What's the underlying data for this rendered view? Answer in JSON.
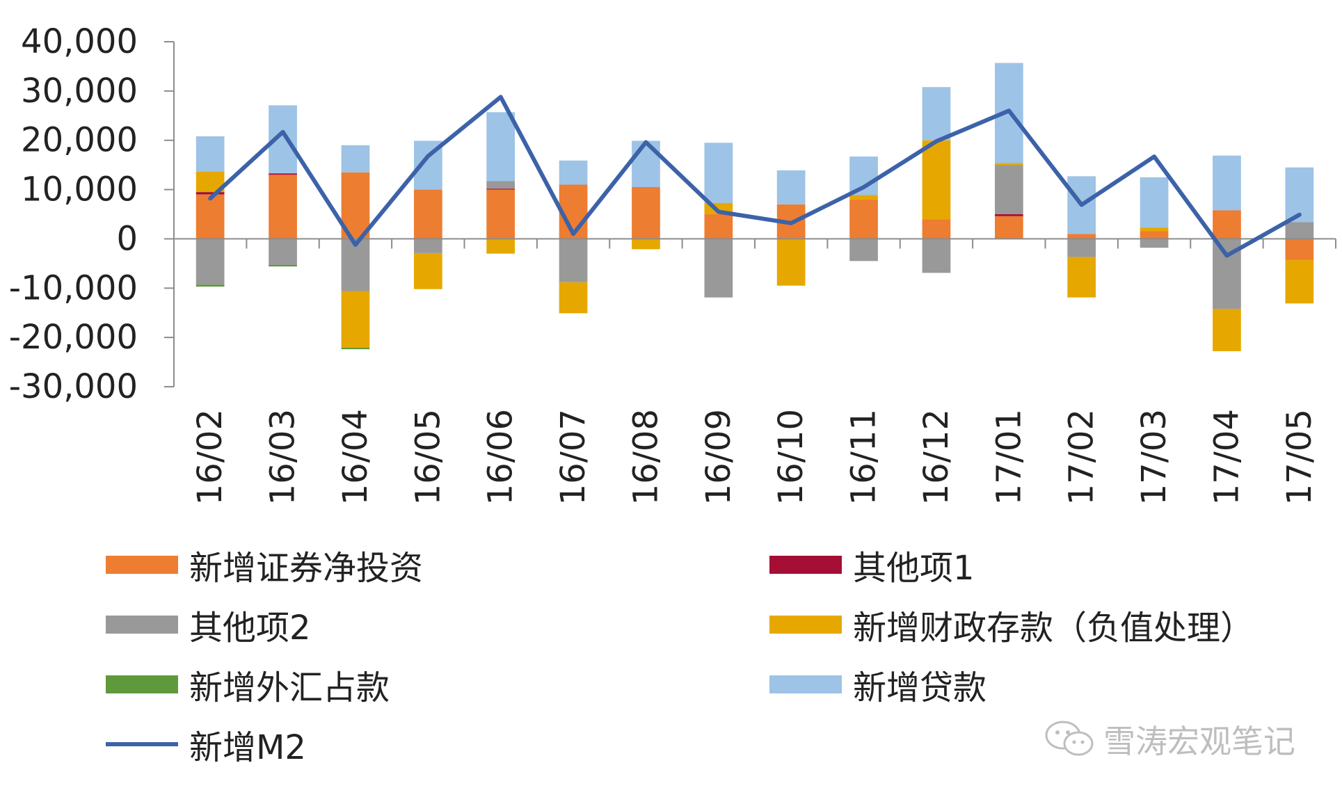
{
  "chart_data": {
    "type": "bar",
    "stacked": true,
    "categories": [
      "16/02",
      "16/03",
      "16/04",
      "16/05",
      "16/06",
      "16/07",
      "16/08",
      "16/09",
      "16/10",
      "16/11",
      "16/12",
      "17/01",
      "17/02",
      "17/03",
      "17/04",
      "17/05"
    ],
    "ylim": [
      -30000,
      40000
    ],
    "yticks": [
      -30000,
      -20000,
      -10000,
      0,
      10000,
      20000,
      30000,
      40000
    ],
    "ytick_labels": [
      "-30,000",
      "-20,000",
      "-10,000",
      "0",
      "10,000",
      "20,000",
      "30,000",
      "40,000"
    ],
    "grid": false,
    "legend_position": "bottom",
    "series": [
      {
        "name": "新增证券净投资",
        "color": "#ED7D31",
        "kind": "bar",
        "values": [
          9000,
          13000,
          13500,
          10000,
          10000,
          11000,
          10500,
          5000,
          7000,
          8000,
          4000,
          4600,
          1000,
          1600,
          5800,
          -4300
        ]
      },
      {
        "name": "其他项1",
        "color": "#A50F35",
        "kind": "bar",
        "values": [
          500,
          300,
          0,
          0,
          200,
          0,
          0,
          0,
          0,
          0,
          0,
          400,
          0,
          0,
          0,
          0
        ]
      },
      {
        "name": "其他项2",
        "color": "#999999",
        "kind": "bar",
        "values": [
          -9300,
          -5300,
          -10600,
          -2900,
          1500,
          -8800,
          0,
          -11900,
          0,
          -4500,
          -6900,
          10000,
          -3700,
          -1800,
          -14200,
          3400
        ]
      },
      {
        "name": "新增财政存款（负值处理）",
        "color": "#E6A800",
        "kind": "bar",
        "values": [
          4200,
          0,
          -11500,
          -7300,
          -3000,
          -6300,
          -2100,
          2300,
          -9500,
          900,
          16000,
          400,
          -8200,
          700,
          -8600,
          -8800
        ]
      },
      {
        "name": "新增外汇占款",
        "color": "#5E9A3B",
        "kind": "bar",
        "values": [
          -400,
          -300,
          -300,
          0,
          0,
          0,
          0,
          0,
          0,
          0,
          0,
          0,
          0,
          0,
          0,
          0
        ]
      },
      {
        "name": "新增贷款",
        "color": "#9DC3E6",
        "kind": "bar",
        "values": [
          7100,
          13800,
          5500,
          9900,
          14000,
          4900,
          9400,
          12200,
          6900,
          7800,
          10800,
          20300,
          11700,
          10200,
          11100,
          11100
        ]
      },
      {
        "name": "新增M2",
        "color": "#3C62A8",
        "kind": "line",
        "values": [
          8200,
          21700,
          -1200,
          16800,
          28800,
          1000,
          19600,
          5500,
          3200,
          10500,
          19800,
          26000,
          6900,
          16700,
          -3400,
          4900
        ]
      }
    ]
  },
  "legend": {
    "items": [
      {
        "label": "新增证券净投资",
        "color": "#ED7D31",
        "kind": "bar"
      },
      {
        "label": "其他项1",
        "color": "#A50F35",
        "kind": "bar"
      },
      {
        "label": "其他项2",
        "color": "#999999",
        "kind": "bar"
      },
      {
        "label": "新增财政存款（负值处理）",
        "color": "#E6A800",
        "kind": "bar"
      },
      {
        "label": "新增外汇占款",
        "color": "#5E9A3B",
        "kind": "bar"
      },
      {
        "label": "新增贷款",
        "color": "#9DC3E6",
        "kind": "bar"
      },
      {
        "label": "新增M2",
        "color": "#3C62A8",
        "kind": "line"
      }
    ]
  },
  "watermark": {
    "text": "雪涛宏观笔记",
    "icon": "wechat-icon"
  }
}
